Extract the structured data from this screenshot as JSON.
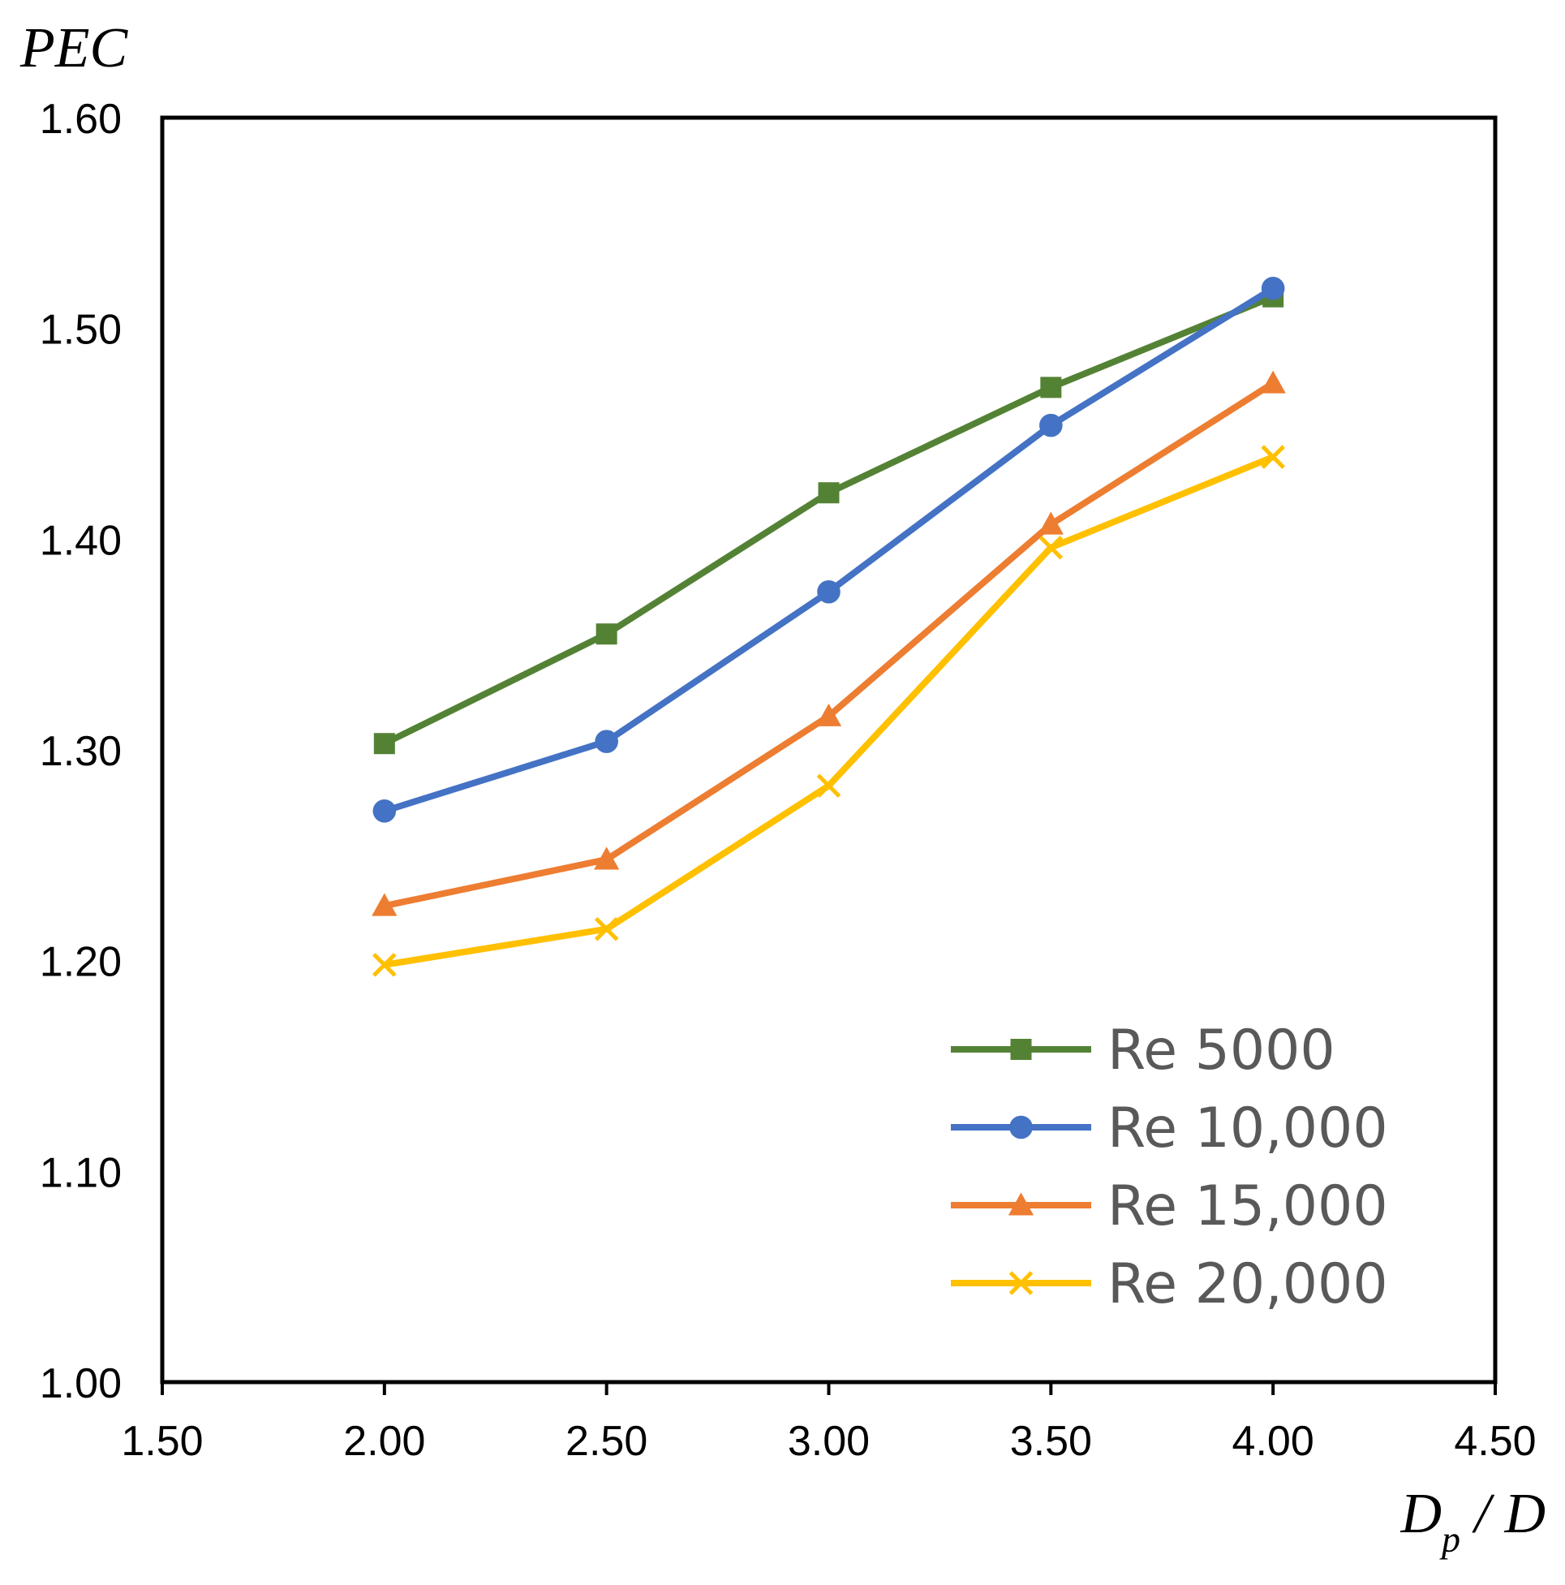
{
  "chart_data": {
    "type": "line",
    "title": "",
    "ylabel": "PEC",
    "xlabel": {
      "main": "D",
      "sub": "p",
      "rest": " / D"
    },
    "xlim": [
      1.5,
      4.5
    ],
    "ylim": [
      1.0,
      1.6
    ],
    "xticks": [
      "1.50",
      "2.00",
      "2.50",
      "3.00",
      "3.50",
      "4.00",
      "4.50"
    ],
    "yticks": [
      "1.00",
      "1.10",
      "1.20",
      "1.30",
      "1.40",
      "1.50",
      "1.60"
    ],
    "grid": false,
    "legend_position": "bottom-right",
    "x": [
      2.0,
      2.5,
      3.0,
      3.5,
      4.0
    ],
    "series": [
      {
        "name": "Re 5000",
        "color": "#548235",
        "marker": "square",
        "values": [
          1.303,
          1.355,
          1.422,
          1.472,
          1.515
        ]
      },
      {
        "name": "Re 10,000",
        "color": "#4472C4",
        "marker": "circle",
        "values": [
          1.271,
          1.304,
          1.375,
          1.454,
          1.519
        ]
      },
      {
        "name": "Re 15,000",
        "color": "#ED7D31",
        "marker": "triangle",
        "values": [
          1.226,
          1.248,
          1.316,
          1.407,
          1.474
        ]
      },
      {
        "name": "Re 20,000",
        "color": "#FFC000",
        "marker": "x",
        "values": [
          1.198,
          1.215,
          1.283,
          1.396,
          1.439
        ]
      }
    ]
  }
}
